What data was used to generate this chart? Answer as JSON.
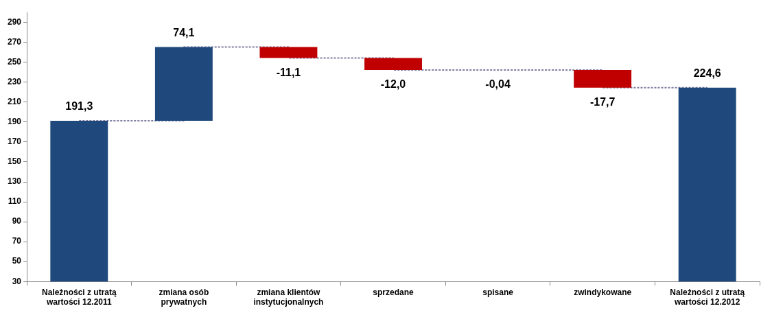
{
  "chart_data": {
    "type": "bar",
    "categories": [
      "Należności z utratą wartości 12.2011",
      "zmiana osób prywatnych",
      "zmiana klientów instytucjonalnych",
      "sprzedane",
      "spisane",
      "zwindykowane",
      "Należności z utratą wartości 12.2012"
    ],
    "series": [
      {
        "values": [
          191.3,
          74.1,
          -11.1,
          -12.0,
          -0.04,
          -17.7,
          224.6
        ],
        "base": [
          0,
          191.3,
          265.4,
          254.3,
          242.3,
          242.26,
          0
        ],
        "colors": [
          "#1f497d",
          "#1f497d",
          "#c00000",
          "#c00000",
          "#c00000",
          "#c00000",
          "#1f497d"
        ],
        "value_labels": [
          "191,3",
          "74,1",
          "-11,1",
          "-12,0",
          "-0,04",
          "-17,7",
          "224,6"
        ]
      },
      {
        "type": "step",
        "values": [
          191.3,
          265.4,
          254.3,
          242.3,
          242.26,
          224.6,
          224.6
        ],
        "color": "#7f7fa0",
        "line_style": "dashed"
      }
    ],
    "ylim": [
      30,
      300
    ],
    "yticks": [
      30,
      50,
      70,
      90,
      110,
      130,
      150,
      170,
      190,
      210,
      230,
      250,
      270,
      290
    ],
    "grid": false,
    "legend": false
  }
}
